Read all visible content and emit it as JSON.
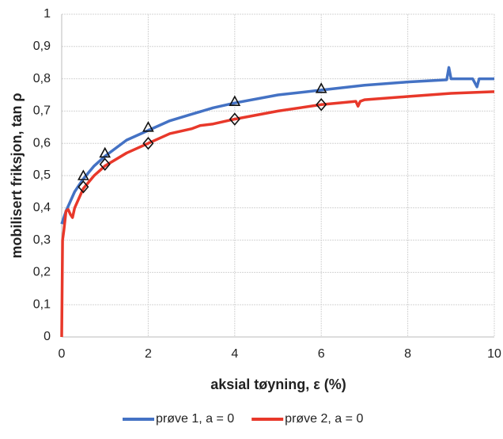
{
  "chart_data": {
    "type": "line",
    "x_label": "aksial tøyning, ε (%)",
    "y_label": "mobilisert friksjon, tan ρ",
    "xlim": [
      0,
      10
    ],
    "xticks": [
      0,
      2,
      4,
      6,
      8,
      10
    ],
    "ylim": [
      0,
      1
    ],
    "yticks": [
      0,
      {
        "value": 0.1,
        "label": "0,1"
      },
      {
        "value": 0.2,
        "label": "0,2"
      },
      {
        "value": 0.3,
        "label": "0,3"
      },
      {
        "value": 0.4,
        "label": "0,4"
      },
      {
        "value": 0.5,
        "label": "0,5"
      },
      {
        "value": 0.6,
        "label": "0,6"
      },
      {
        "value": 0.7,
        "label": "0,7"
      },
      {
        "value": 0.8,
        "label": "0,8"
      },
      {
        "value": 0.9,
        "label": "0,9"
      },
      1
    ],
    "grid": true,
    "legend": "bottom",
    "series": [
      {
        "name": "prøve 1, a = 0",
        "color": "#4472c4",
        "x": [
          0,
          0.05,
          0.1,
          0.2,
          0.3,
          0.5,
          0.75,
          1,
          1.5,
          2,
          2.5,
          3,
          3.5,
          4,
          5,
          6,
          7,
          8,
          8.9,
          8.95,
          9,
          9.5,
          9.6,
          9.65,
          9.7,
          10
        ],
        "values": [
          0.35,
          0.37,
          0.39,
          0.42,
          0.45,
          0.49,
          0.53,
          0.56,
          0.61,
          0.64,
          0.67,
          0.69,
          0.71,
          0.725,
          0.75,
          0.765,
          0.78,
          0.79,
          0.797,
          0.835,
          0.8,
          0.8,
          0.775,
          0.8,
          0.8,
          0.8
        ],
        "marker": "triangle",
        "markers": {
          "x": [
            0.5,
            1,
            2,
            4,
            6
          ],
          "values": [
            0.5,
            0.57,
            0.65,
            0.73,
            0.77
          ]
        }
      },
      {
        "name": "prøve 2, a = 0",
        "color": "#e8382a",
        "x": [
          0,
          0.02,
          0.05,
          0.1,
          0.15,
          0.2,
          0.25,
          0.3,
          0.5,
          0.75,
          1,
          1.5,
          2,
          2.5,
          3,
          3.2,
          3.5,
          4,
          5,
          6,
          6.8,
          6.85,
          6.9,
          7,
          8,
          9,
          10
        ],
        "values": [
          0,
          0.3,
          0.33,
          0.39,
          0.395,
          0.38,
          0.37,
          0.4,
          0.46,
          0.5,
          0.53,
          0.57,
          0.6,
          0.63,
          0.645,
          0.655,
          0.66,
          0.675,
          0.7,
          0.72,
          0.73,
          0.715,
          0.73,
          0.735,
          0.745,
          0.755,
          0.76
        ],
        "marker": "diamond",
        "markers": {
          "x": [
            0.5,
            1,
            2,
            4,
            6
          ],
          "values": [
            0.465,
            0.535,
            0.6,
            0.675,
            0.72
          ]
        }
      }
    ]
  }
}
